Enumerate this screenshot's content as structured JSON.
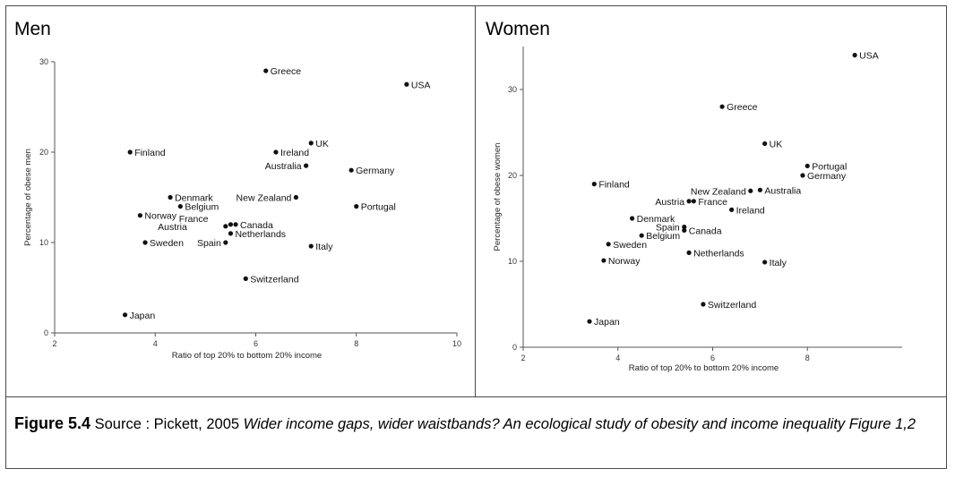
{
  "caption": {
    "figure_label": "Figure 5.4",
    "source_prefix": "Source : Pickett, 2005",
    "title_italic": "Wider income gaps, wider waistbands? An ecological study of obesity and income inequality Figure 1,2"
  },
  "chart_data": [
    {
      "type": "scatter",
      "title": "Men",
      "xlabel": "Ratio of top 20% to bottom 20% income",
      "ylabel": "Percentage of obese men",
      "xlim": [
        2,
        10
      ],
      "ylim": [
        0,
        30
      ],
      "xticks": [
        2,
        4,
        6,
        8,
        10
      ],
      "yticks": [
        0,
        10,
        20,
        30
      ],
      "grid": false,
      "points": [
        {
          "label": "Greece",
          "x": 6.2,
          "y": 29
        },
        {
          "label": "USA",
          "x": 9.0,
          "y": 27.5
        },
        {
          "label": "UK",
          "x": 7.1,
          "y": 21
        },
        {
          "label": "Ireland",
          "x": 6.4,
          "y": 20
        },
        {
          "label": "Finland",
          "x": 3.5,
          "y": 20
        },
        {
          "label": "Australia",
          "x": 7.0,
          "y": 18.5
        },
        {
          "label": "Germany",
          "x": 7.9,
          "y": 18
        },
        {
          "label": "Denmark",
          "x": 4.3,
          "y": 15
        },
        {
          "label": "New Zealand",
          "x": 6.8,
          "y": 15
        },
        {
          "label": "Belgium",
          "x": 4.5,
          "y": 14
        },
        {
          "label": "Portugal",
          "x": 8.0,
          "y": 14
        },
        {
          "label": "Norway",
          "x": 3.7,
          "y": 13
        },
        {
          "label": "France",
          "x": 5.5,
          "y": 12
        },
        {
          "label": "Austria",
          "x": 5.4,
          "y": 11.8
        },
        {
          "label": "Canada",
          "x": 5.6,
          "y": 12
        },
        {
          "label": "Netherlands",
          "x": 5.5,
          "y": 11
        },
        {
          "label": "Sweden",
          "x": 3.8,
          "y": 10
        },
        {
          "label": "Spain",
          "x": 5.4,
          "y": 10
        },
        {
          "label": "Italy",
          "x": 7.1,
          "y": 9.6
        },
        {
          "label": "Switzerland",
          "x": 5.8,
          "y": 6
        },
        {
          "label": "Japan",
          "x": 3.4,
          "y": 2
        }
      ]
    },
    {
      "type": "scatter",
      "title": "Women",
      "xlabel": "Ratio of top 20% to bottom 20% income",
      "ylabel": "Percentage of obese women",
      "xlim": [
        2,
        10
      ],
      "ylim": [
        0,
        35
      ],
      "xticks": [
        2,
        4,
        6,
        8
      ],
      "yticks": [
        0,
        10,
        20,
        30
      ],
      "grid": false,
      "points": [
        {
          "label": "USA",
          "x": 9.0,
          "y": 34
        },
        {
          "label": "Greece",
          "x": 6.2,
          "y": 28
        },
        {
          "label": "UK",
          "x": 7.1,
          "y": 23.7
        },
        {
          "label": "Portugal",
          "x": 8.0,
          "y": 21.1
        },
        {
          "label": "Germany",
          "x": 7.9,
          "y": 20
        },
        {
          "label": "Finland",
          "x": 3.5,
          "y": 19
        },
        {
          "label": "New Zealand",
          "x": 6.8,
          "y": 18.2
        },
        {
          "label": "Australia",
          "x": 7.0,
          "y": 18.3
        },
        {
          "label": "Austria",
          "x": 5.5,
          "y": 17
        },
        {
          "label": "France",
          "x": 5.6,
          "y": 17
        },
        {
          "label": "Ireland",
          "x": 6.4,
          "y": 16
        },
        {
          "label": "Denmark",
          "x": 4.3,
          "y": 15
        },
        {
          "label": "Spain",
          "x": 5.4,
          "y": 14
        },
        {
          "label": "Canada",
          "x": 5.4,
          "y": 13.6
        },
        {
          "label": "Belgium",
          "x": 4.5,
          "y": 13
        },
        {
          "label": "Sweden",
          "x": 3.8,
          "y": 12
        },
        {
          "label": "Netherlands",
          "x": 5.5,
          "y": 11
        },
        {
          "label": "Norway",
          "x": 3.7,
          "y": 10.1
        },
        {
          "label": "Italy",
          "x": 7.1,
          "y": 9.9
        },
        {
          "label": "Switzerland",
          "x": 5.8,
          "y": 5
        },
        {
          "label": "Japan",
          "x": 3.4,
          "y": 3
        }
      ]
    }
  ]
}
